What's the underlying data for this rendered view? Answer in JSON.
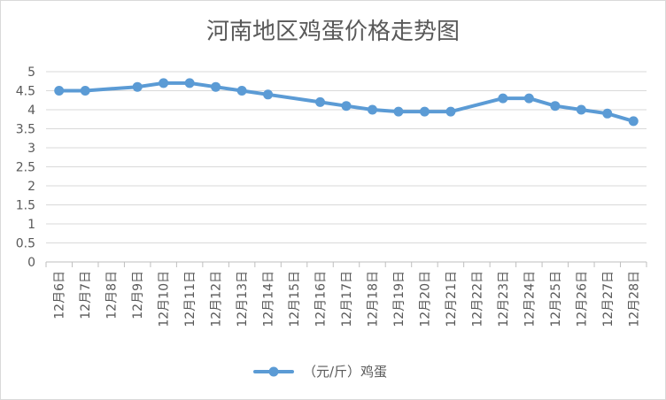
{
  "chart_data": {
    "type": "line",
    "title": "河南地区鸡蛋价格走势图",
    "xlabel": "",
    "ylabel": "",
    "categories": [
      "12月6日",
      "12月7日",
      "12月8日",
      "12月9日",
      "12月10日",
      "12月11日",
      "12月12日",
      "12月13日",
      "12月14日",
      "12月15日",
      "12月16日",
      "12月17日",
      "12月18日",
      "12月19日",
      "12月20日",
      "12月21日",
      "12月22日",
      "12月23日",
      "12月24日",
      "12月25日",
      "12月26日",
      "12月27日",
      "12月28日"
    ],
    "y_ticks": [
      "0",
      "0.5",
      "1",
      "1.5",
      "2",
      "2.5",
      "3",
      "3.5",
      "4",
      "4.5",
      "5"
    ],
    "ylim": [
      0,
      5
    ],
    "grid": true,
    "legend_position": "bottom",
    "series": [
      {
        "name": "（元/斤）鸡蛋",
        "color": "#5b9bd5",
        "points": [
          {
            "x": "12月6日",
            "y": 4.5
          },
          {
            "x": "12月7日",
            "y": 4.5
          },
          {
            "x": "12月9日",
            "y": 4.6
          },
          {
            "x": "12月10日",
            "y": 4.7
          },
          {
            "x": "12月11日",
            "y": 4.7
          },
          {
            "x": "12月12日",
            "y": 4.6
          },
          {
            "x": "12月13日",
            "y": 4.5
          },
          {
            "x": "12月14日",
            "y": 4.4
          },
          {
            "x": "12月16日",
            "y": 4.2
          },
          {
            "x": "12月17日",
            "y": 4.1
          },
          {
            "x": "12月18日",
            "y": 4.0
          },
          {
            "x": "12月19日",
            "y": 3.95
          },
          {
            "x": "12月20日",
            "y": 3.95
          },
          {
            "x": "12月21日",
            "y": 3.95
          },
          {
            "x": "12月23日",
            "y": 4.3
          },
          {
            "x": "12月24日",
            "y": 4.3
          },
          {
            "x": "12月25日",
            "y": 4.1
          },
          {
            "x": "12月26日",
            "y": 4.0
          },
          {
            "x": "12月27日",
            "y": 3.9
          },
          {
            "x": "12月28日",
            "y": 3.7
          }
        ]
      }
    ]
  }
}
